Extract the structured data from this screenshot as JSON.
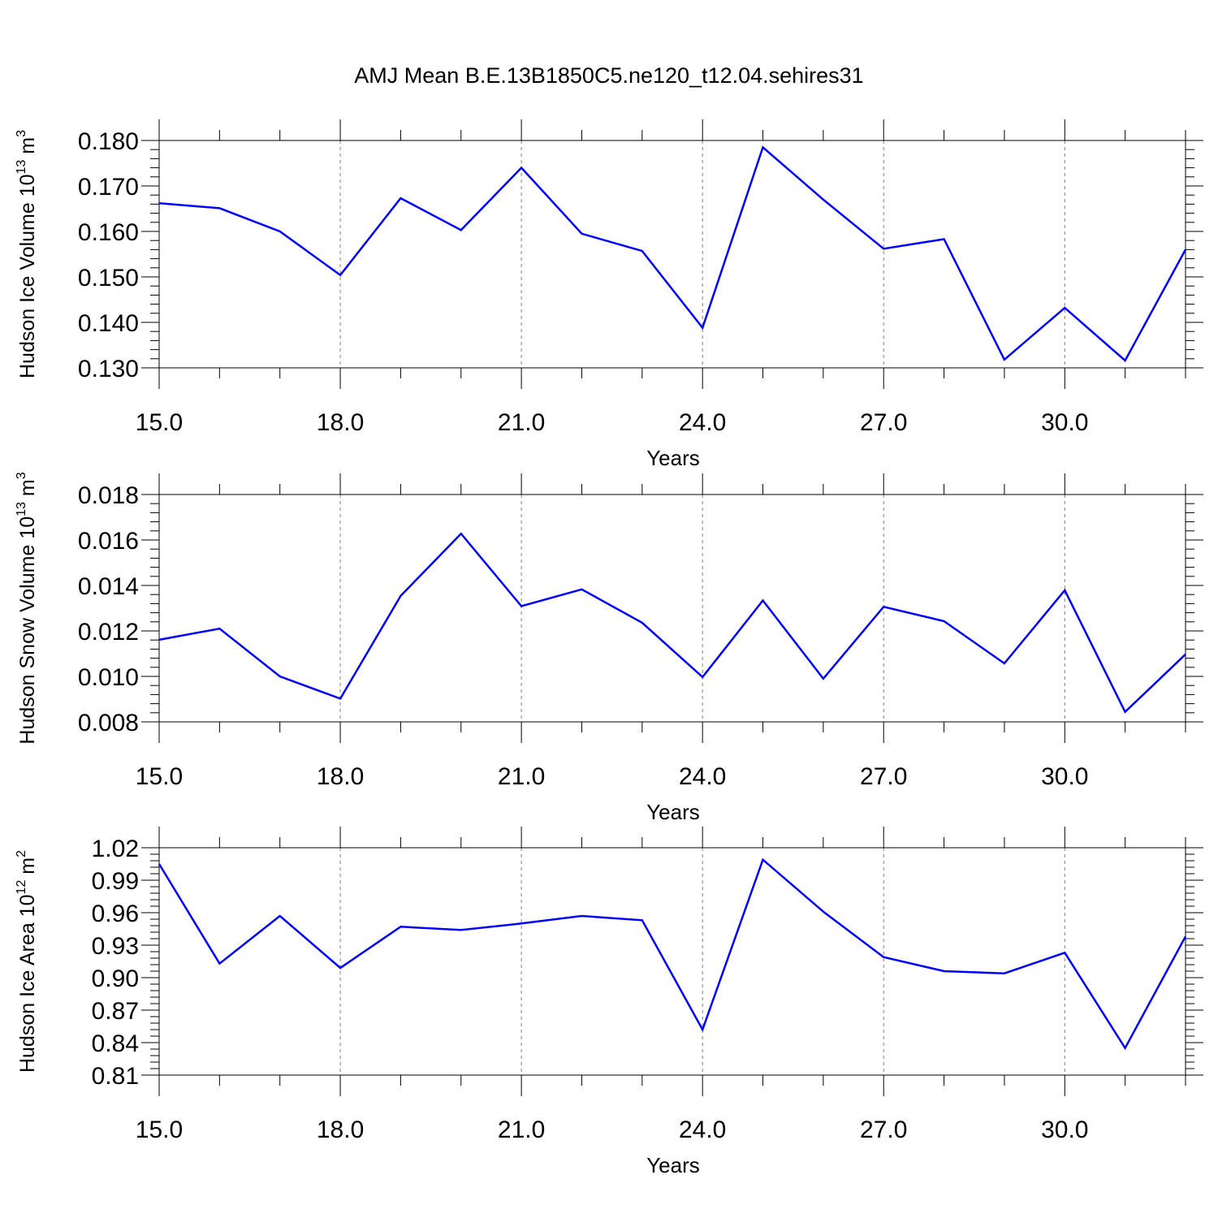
{
  "title": "AMJ Mean B.E.13B1850C5.ne120_t12.04.sehires31",
  "line_color": "#0000ff",
  "chart_data": [
    {
      "type": "line",
      "ylabel": "Hudson Ice Volume 10",
      "ylabel_exp": "13",
      "ylabel_unit": " m",
      "ylabel_unit_exp": "3",
      "xlabel": "Years",
      "xlim": [
        15,
        32
      ],
      "ylim": [
        0.13,
        0.18
      ],
      "xticks": [
        "15.0",
        "18.0",
        "21.0",
        "24.0",
        "27.0",
        "30.0"
      ],
      "yticks": [
        "0.130",
        "0.140",
        "0.150",
        "0.160",
        "0.170",
        "0.180"
      ],
      "grid": "vertical dashed at major x ticks",
      "series": [
        {
          "x": [
            15,
            16,
            17,
            18,
            19,
            20,
            21,
            22,
            23,
            24,
            25,
            26,
            27,
            28,
            29,
            30,
            31,
            32
          ],
          "values": [
            0.1662,
            0.1651,
            0.16,
            0.1504,
            0.1673,
            0.1603,
            0.174,
            0.1595,
            0.1557,
            0.1388,
            0.1785,
            0.167,
            0.1562,
            0.1583,
            0.1318,
            0.1432,
            0.1316,
            0.156
          ]
        }
      ]
    },
    {
      "type": "line",
      "ylabel": "Hudson Snow Volume 10",
      "ylabel_exp": "13",
      "ylabel_unit": " m",
      "ylabel_unit_exp": "3",
      "xlabel": "Years",
      "xlim": [
        15,
        32
      ],
      "ylim": [
        0.008,
        0.018
      ],
      "xticks": [
        "15.0",
        "18.0",
        "21.0",
        "24.0",
        "27.0",
        "30.0"
      ],
      "yticks": [
        "0.008",
        "0.010",
        "0.012",
        "0.014",
        "0.016",
        "0.018"
      ],
      "grid": "vertical dashed at major x ticks",
      "series": [
        {
          "x": [
            15,
            16,
            17,
            18,
            19,
            20,
            21,
            22,
            23,
            24,
            25,
            26,
            27,
            28,
            29,
            30,
            31,
            32
          ],
          "values": [
            0.01161,
            0.0121,
            0.01,
            0.00902,
            0.01354,
            0.01628,
            0.01309,
            0.01383,
            0.01236,
            0.00997,
            0.01334,
            0.0099,
            0.01306,
            0.01243,
            0.01057,
            0.01379,
            0.00844,
            0.01097
          ]
        }
      ]
    },
    {
      "type": "line",
      "ylabel": "Hudson Ice Area 10",
      "ylabel_exp": "12",
      "ylabel_unit": " m",
      "ylabel_unit_exp": "2",
      "xlabel": "Years",
      "xlim": [
        15,
        32
      ],
      "ylim": [
        0.81,
        1.02
      ],
      "xticks": [
        "15.0",
        "18.0",
        "21.0",
        "24.0",
        "27.0",
        "30.0"
      ],
      "yticks": [
        "0.81",
        "0.84",
        "0.87",
        "0.90",
        "0.93",
        "0.96",
        "0.99",
        "1.02"
      ],
      "grid": "vertical dashed at major x ticks",
      "series": [
        {
          "x": [
            15,
            16,
            17,
            18,
            19,
            20,
            21,
            22,
            23,
            24,
            25,
            26,
            27,
            28,
            29,
            30,
            31,
            32
          ],
          "values": [
            1.005,
            0.913,
            0.957,
            0.909,
            0.947,
            0.944,
            0.95,
            0.957,
            0.953,
            0.852,
            1.009,
            0.961,
            0.919,
            0.906,
            0.904,
            0.923,
            0.835,
            0.938
          ]
        }
      ]
    }
  ]
}
